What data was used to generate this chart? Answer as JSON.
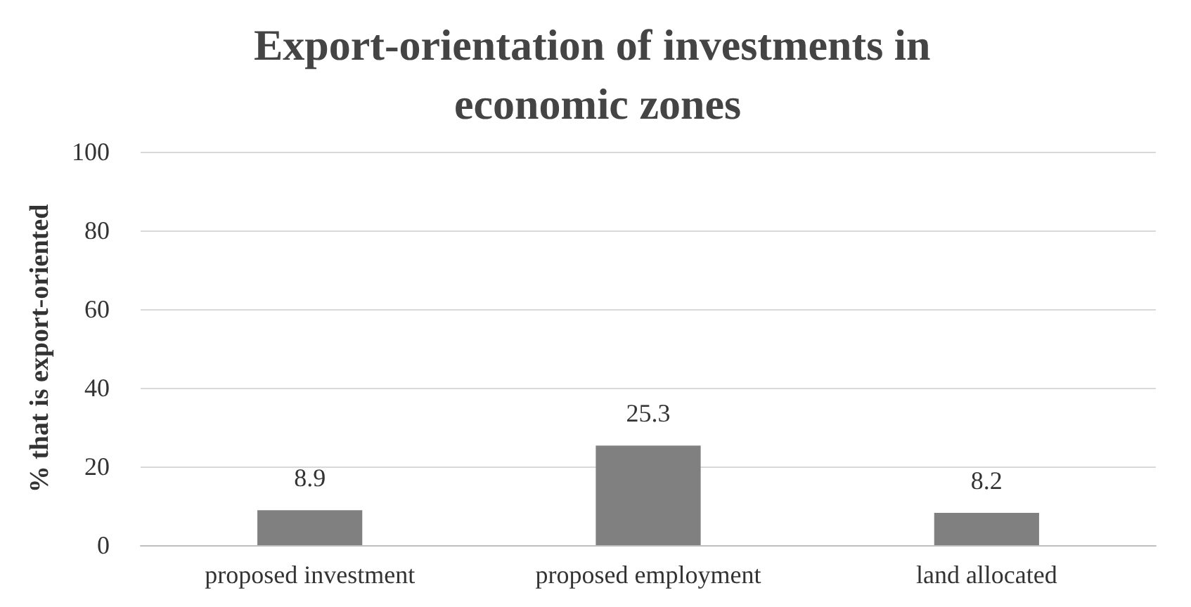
{
  "chart_data": {
    "type": "bar",
    "title": "Export-orientation of investments in economic zones",
    "ylabel": "% that is export-oriented",
    "categories": [
      "proposed investment",
      "proposed employment",
      "land allocated"
    ],
    "values": [
      8.9,
      25.3,
      8.2
    ],
    "color": "#808080",
    "ylim": [
      0,
      100
    ],
    "yticks": [
      0,
      20,
      40,
      60,
      80,
      100
    ],
    "grid": "y",
    "data_labels": true
  }
}
